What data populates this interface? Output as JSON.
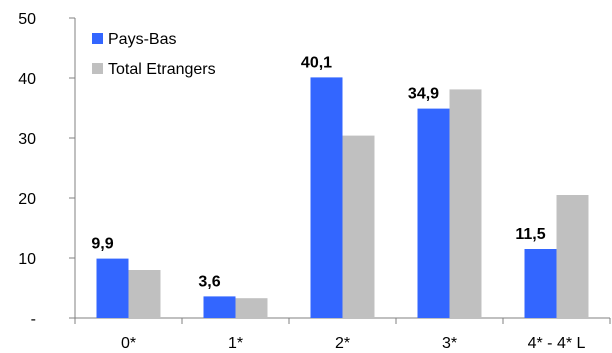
{
  "chart_data": {
    "type": "bar",
    "categories": [
      "0*",
      "1*",
      "2*",
      "3*",
      "4* - 4* L"
    ],
    "series": [
      {
        "name": "Pays-Bas",
        "color": "#3366ff",
        "values": [
          9.9,
          3.6,
          40.1,
          34.9,
          11.5
        ]
      },
      {
        "name": "Total Etrangers",
        "color": "#c0c0c0",
        "values": [
          8.0,
          3.3,
          30.4,
          38.1,
          20.5
        ]
      }
    ],
    "data_labels": [
      "9,9",
      "3,6",
      "40,1",
      "34,9",
      "11,5"
    ],
    "y_ticks": [
      {
        "value": 0,
        "label": "-"
      },
      {
        "value": 10,
        "label": "10"
      },
      {
        "value": 20,
        "label": "20"
      },
      {
        "value": 30,
        "label": "30"
      },
      {
        "value": 40,
        "label": "40"
      },
      {
        "value": 50,
        "label": "50"
      }
    ],
    "ylim": [
      0,
      50
    ],
    "legend_position": "top-left",
    "grid": false
  }
}
